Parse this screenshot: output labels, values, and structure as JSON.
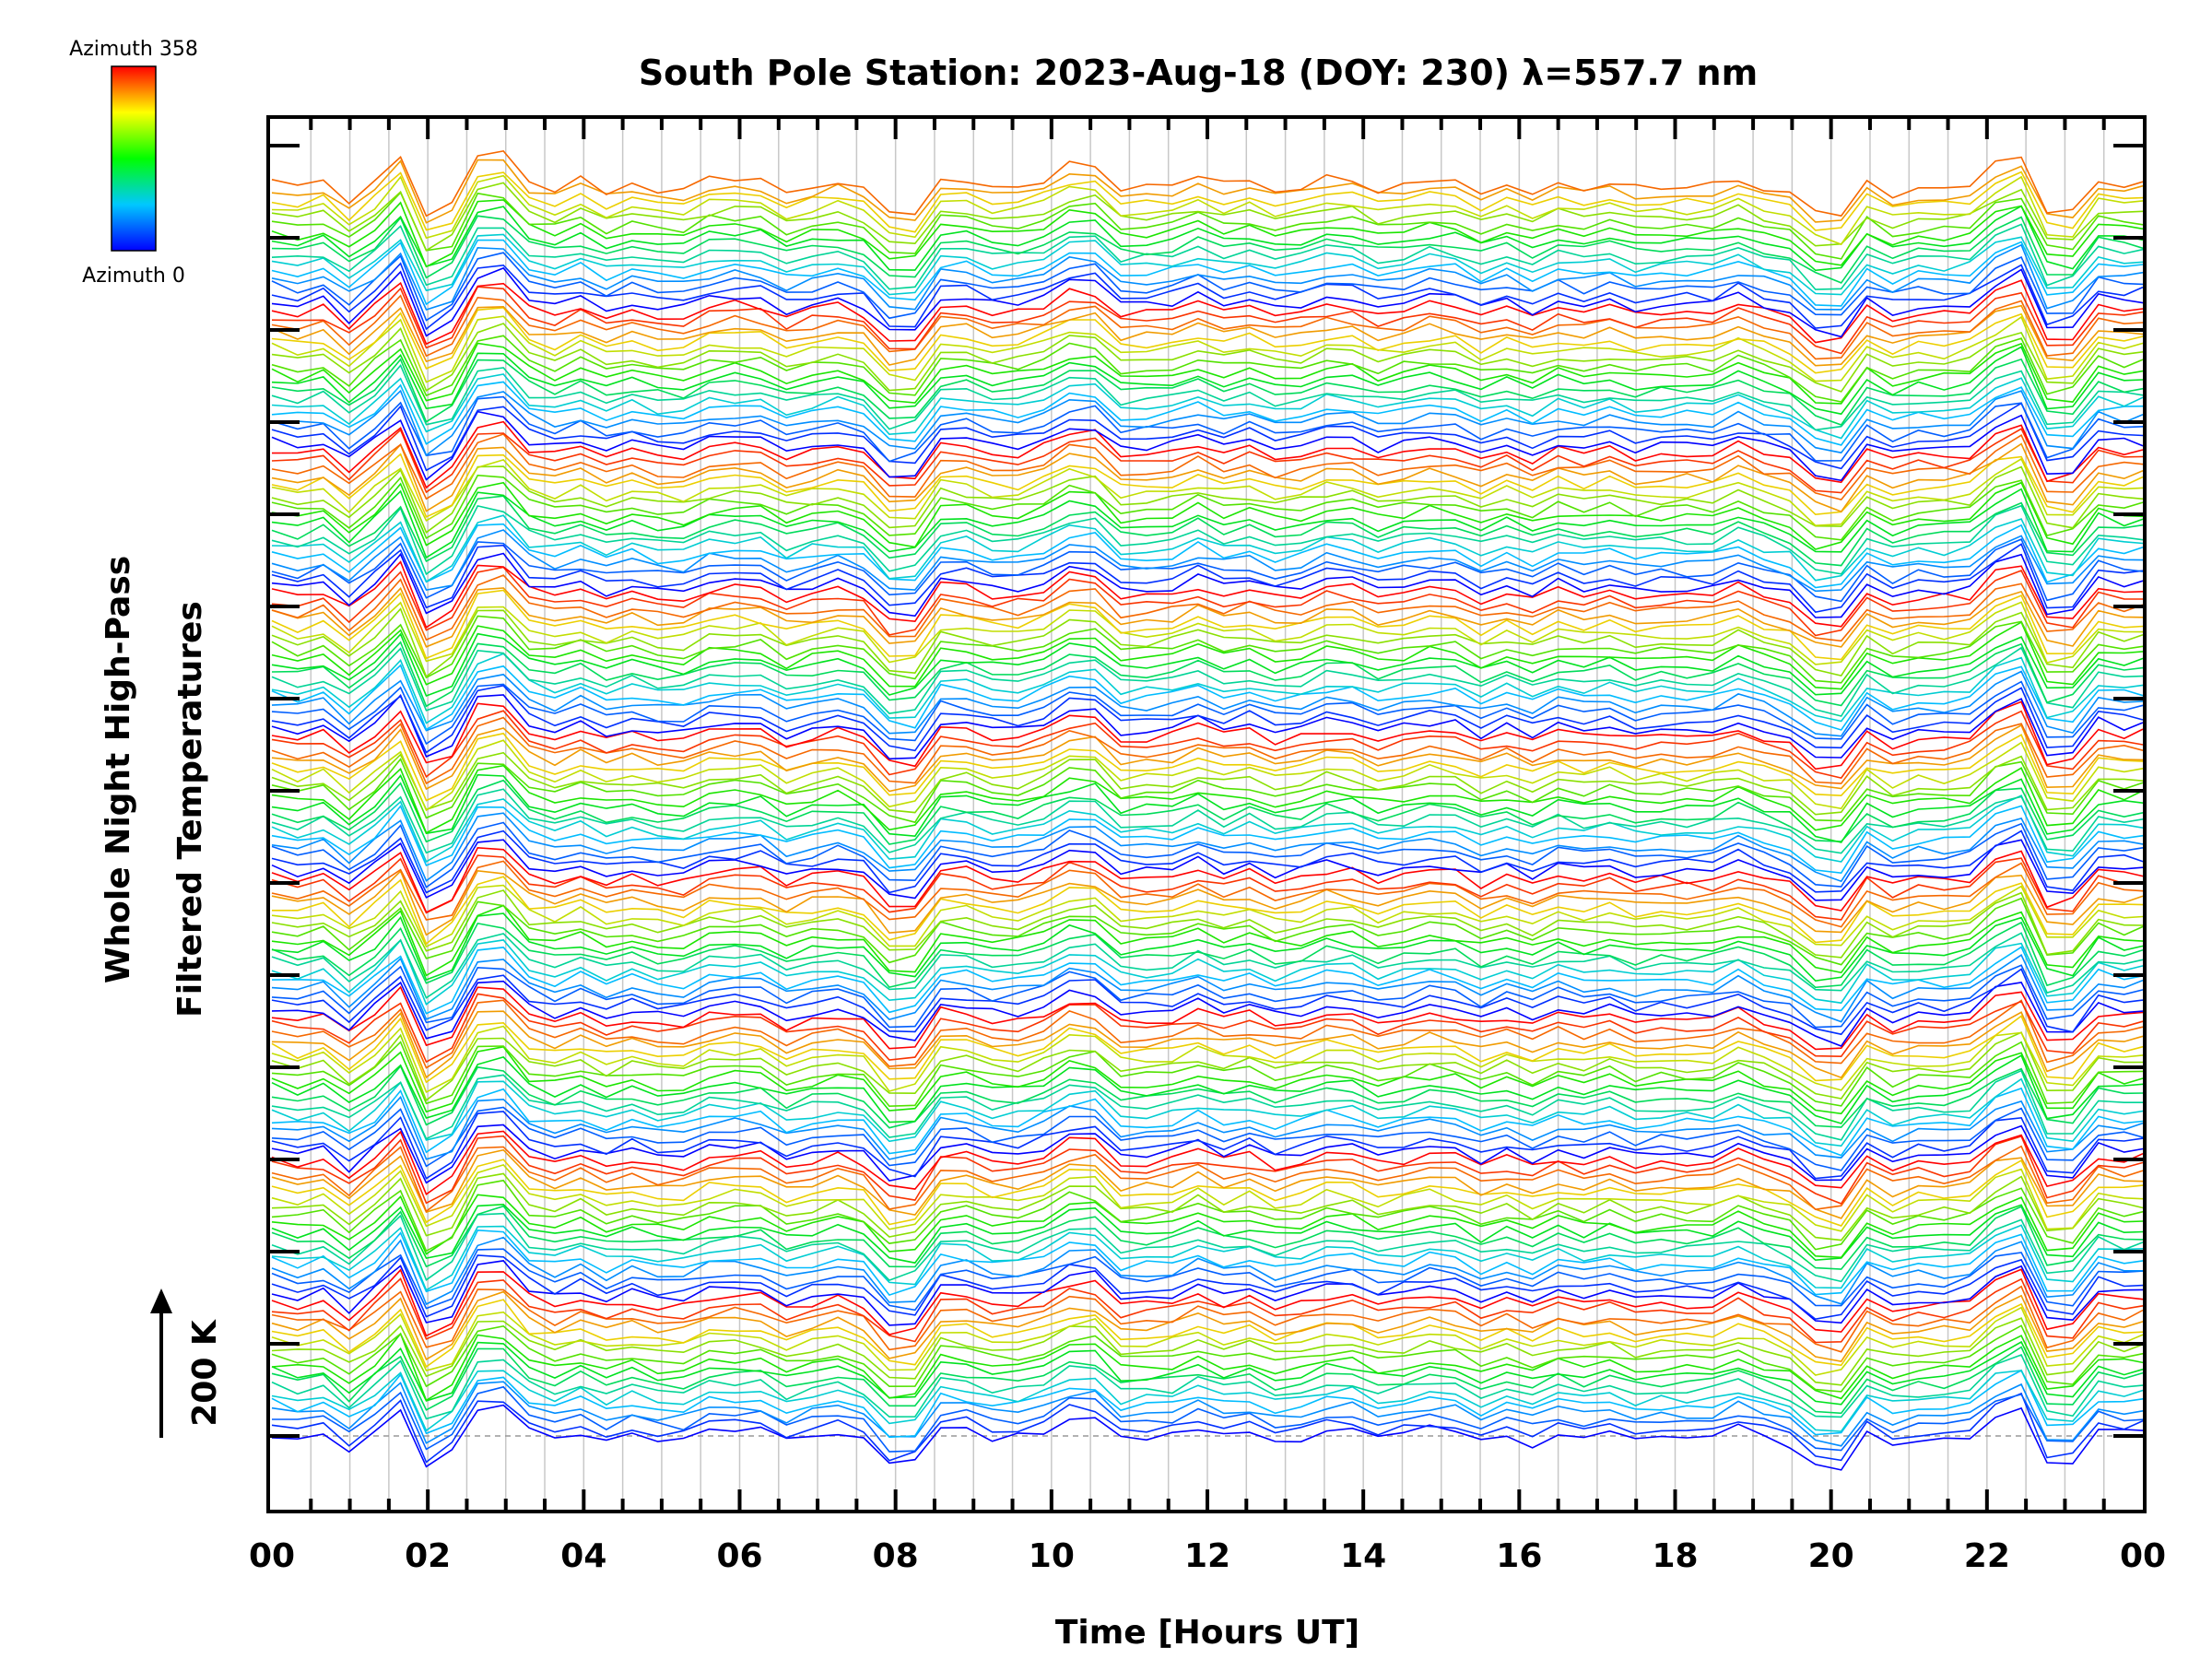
{
  "chart_data": {
    "type": "line",
    "title": "South Pole Station: 2023-Aug-18 (DOY: 230) λ=557.7 nm",
    "xlabel": "Time [Hours UT]",
    "ylabel_line1": "Whole Night High-Pass",
    "ylabel_line2": "Filtered Temperatures",
    "scale_label": "200 K",
    "xlim": [
      0,
      24
    ],
    "x_ticks": [
      "00",
      "02",
      "04",
      "06",
      "08",
      "10",
      "12",
      "14",
      "16",
      "18",
      "20",
      "22",
      "00"
    ],
    "colorbar": {
      "top_label": "Azimuth 358",
      "bottom_label": "Azimuth 0",
      "min": 0,
      "max": 358
    },
    "n_series": 160,
    "azimuth_cycle": 18,
    "series_spacing_k": 0.1,
    "base_offset_k": 0,
    "vertical_extent_k": 16.4,
    "sample_interval_hours": 0.33,
    "event_hours": [
      1.2,
      1.5,
      2.2,
      2.7,
      8.0,
      10.3,
      19.9,
      22.3,
      22.8
    ],
    "grid": true,
    "reference_line": "dashed grey baseline"
  },
  "colors": {
    "azimuth_low": "#0000ff",
    "azimuth_mid": "#00ff00",
    "azimuth_high": "#ff0000",
    "grid": "#c8c8c8",
    "axis": "#000000",
    "baseline": "#999999"
  }
}
